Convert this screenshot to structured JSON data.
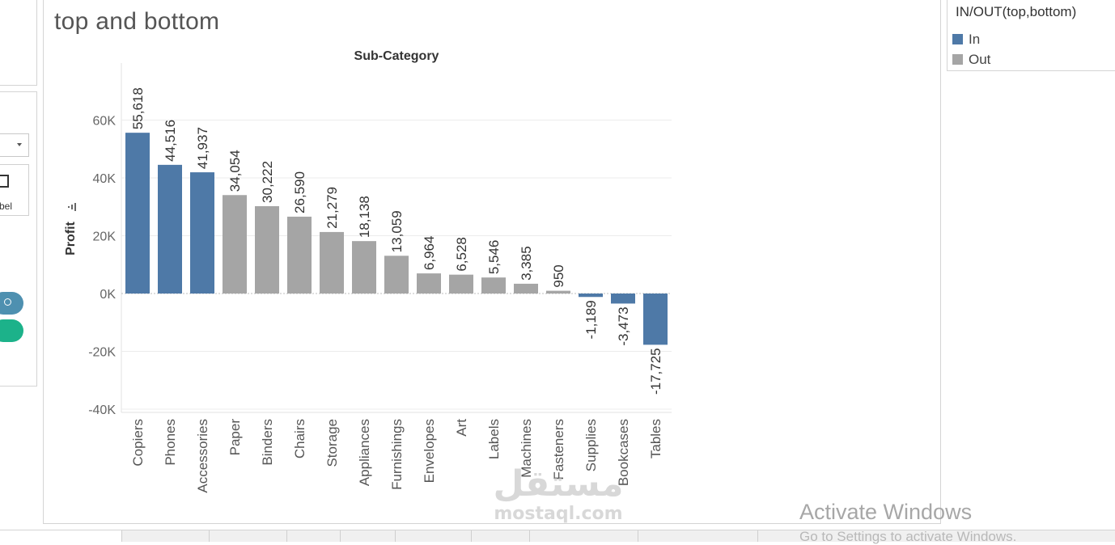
{
  "sheet": {
    "title": "top and bottom"
  },
  "left_panel": {
    "mark_label": "bel"
  },
  "legend": {
    "title": "IN/OUT(top,bottom)",
    "items": [
      {
        "label": "In",
        "color": "#4e79a7"
      },
      {
        "label": "Out",
        "color": "#a5a5a5"
      }
    ]
  },
  "chart_data": {
    "type": "bar",
    "title": "Sub-Category",
    "ylabel": "Profit",
    "ylim": [
      -45000,
      80000
    ],
    "yticks": [
      60000,
      40000,
      20000,
      0,
      -20000,
      -40000
    ],
    "ytick_labels": [
      "60K",
      "40K",
      "20K",
      "0K",
      "-20K",
      "-40K"
    ],
    "grid": true,
    "legend_position": "top-right",
    "categories": [
      "Copiers",
      "Phones",
      "Accessories",
      "Paper",
      "Binders",
      "Chairs",
      "Storage",
      "Appliances",
      "Furnishings",
      "Envelopes",
      "Art",
      "Labels",
      "Machines",
      "Fasteners",
      "Supplies",
      "Bookcases",
      "Tables"
    ],
    "values": [
      55618,
      44516,
      41937,
      34054,
      30222,
      26590,
      21279,
      18138,
      13059,
      6964,
      6528,
      5546,
      3385,
      950,
      -1189,
      -3473,
      -17725
    ],
    "value_labels": [
      "55,618",
      "44,516",
      "41,937",
      "34,054",
      "30,222",
      "26,590",
      "21,279",
      "18,138",
      "13,059",
      "6,964",
      "6,528",
      "5,546",
      "3,385",
      "950",
      "-1,189",
      "-3,473",
      "-17,725"
    ],
    "group": [
      "In",
      "In",
      "In",
      "Out",
      "Out",
      "Out",
      "Out",
      "Out",
      "Out",
      "Out",
      "Out",
      "Out",
      "Out",
      "Out",
      "In",
      "In",
      "In"
    ],
    "colors": {
      "In": "#4e79a7",
      "Out": "#a5a5a5"
    }
  },
  "watermark": {
    "logo": "مستقل",
    "text": "mostaql.com"
  },
  "os_notice": {
    "title": "Activate Windows",
    "subtitle": "Go to Settings to activate Windows."
  }
}
